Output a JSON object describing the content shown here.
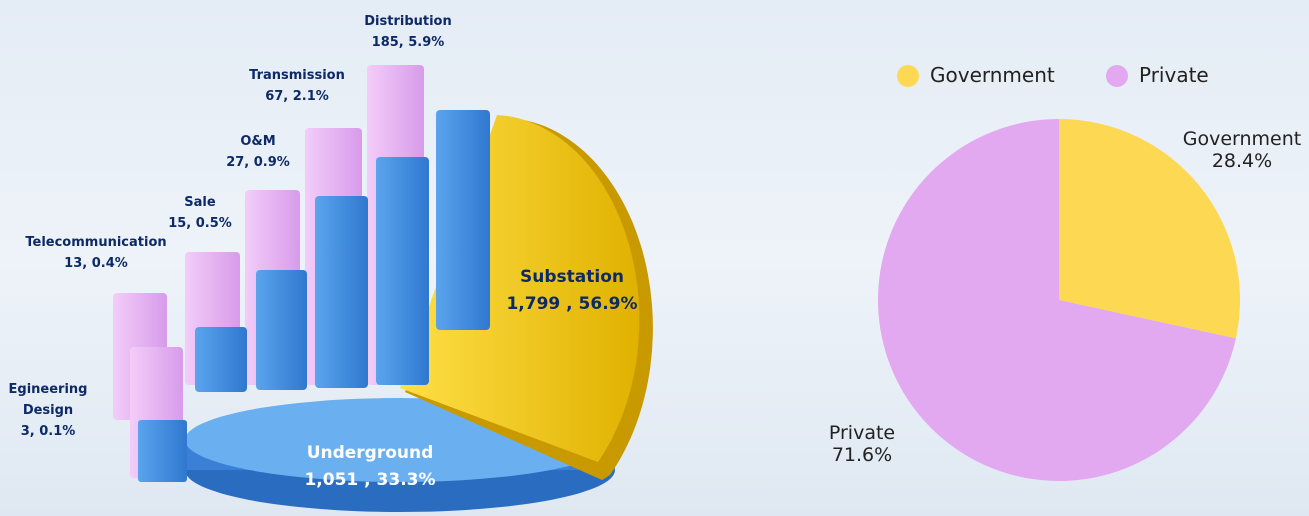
{
  "infographic": {
    "segments": [
      {
        "name": "Distribution",
        "label": "185, 5.9%"
      },
      {
        "name": "Transmission",
        "label": "67, 2.1%"
      },
      {
        "name": "O&M",
        "label": "27, 0.9%"
      },
      {
        "name": "Sale",
        "label": "15, 0.5%"
      },
      {
        "name": "Telecommunication",
        "label": "13, 0.4%"
      },
      {
        "name": "Egineering Design",
        "label": "3, 0.1%"
      },
      {
        "name": "Substation",
        "label": "1,799 , 56.9%"
      },
      {
        "name": "Underground",
        "label": "1,051 , 33.3%"
      }
    ]
  },
  "chart_data": {
    "type": "pie",
    "categories": [
      "Government",
      "Private"
    ],
    "values": [
      28.4,
      71.6
    ],
    "value_labels": [
      "28.4%",
      "71.6%"
    ],
    "colors": [
      "#fdd853",
      "#e2a8f0"
    ],
    "legend": "top"
  }
}
